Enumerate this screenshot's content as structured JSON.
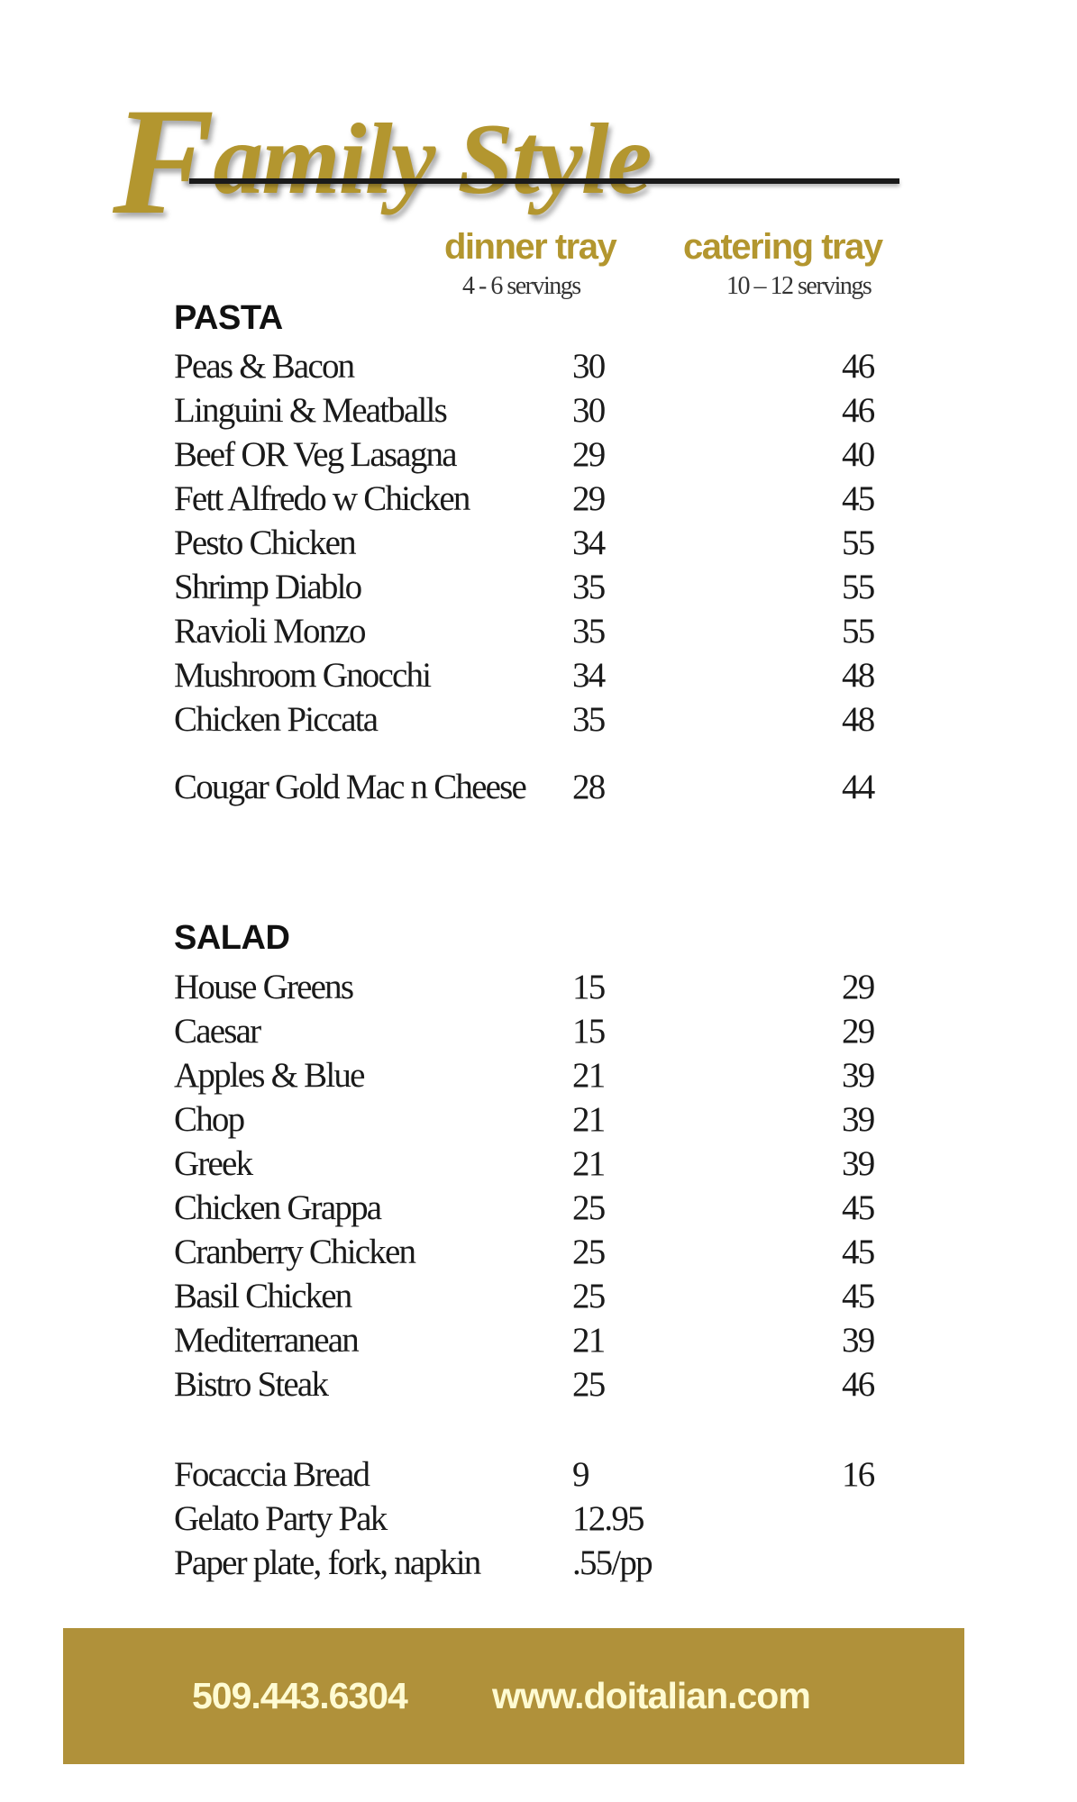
{
  "title": {
    "initial": "F",
    "rest": "amily Style"
  },
  "columns": [
    {
      "label": "dinner tray",
      "servings": "4 - 6 servings"
    },
    {
      "label": "catering tray",
      "servings": "10 – 12 servings"
    }
  ],
  "pasta": {
    "heading": "PASTA",
    "items": [
      {
        "name": "Peas & Bacon",
        "dinner": "30",
        "catering": "46"
      },
      {
        "name": "Linguini & Meatballs",
        "dinner": "30",
        "catering": "46"
      },
      {
        "name": "Beef OR Veg Lasagna",
        "dinner": "29",
        "catering": "40"
      },
      {
        "name": "Fett Alfredo w Chicken",
        "dinner": "29",
        "catering": "45"
      },
      {
        "name": "Pesto Chicken",
        "dinner": "34",
        "catering": "55"
      },
      {
        "name": "Shrimp Diablo",
        "dinner": "35",
        "catering": "55"
      },
      {
        "name": "Ravioli Monzo",
        "dinner": "35",
        "catering": "55"
      },
      {
        "name": "Mushroom Gnocchi",
        "dinner": "34",
        "catering": "48"
      },
      {
        "name": "Chicken Piccata",
        "dinner": "35",
        "catering": "48"
      },
      {
        "name": "Cougar Gold Mac n Cheese",
        "dinner": "28",
        "catering": "44"
      }
    ]
  },
  "salad": {
    "heading": "SALAD",
    "items": [
      {
        "name": "House Greens",
        "dinner": "15",
        "catering": "29"
      },
      {
        "name": "Caesar",
        "dinner": "15",
        "catering": "29"
      },
      {
        "name": "Apples & Blue",
        "dinner": "21",
        "catering": "39"
      },
      {
        "name": "Chop",
        "dinner": "21",
        "catering": "39"
      },
      {
        "name": "Greek",
        "dinner": "21",
        "catering": "39"
      },
      {
        "name": "Chicken Grappa",
        "dinner": "25",
        "catering": "45"
      },
      {
        "name": "Cranberry Chicken",
        "dinner": "25",
        "catering": "45"
      },
      {
        "name": "Basil Chicken",
        "dinner": "25",
        "catering": "45"
      },
      {
        "name": "Mediterranean",
        "dinner": "21",
        "catering": "39"
      },
      {
        "name": "Bistro Steak",
        "dinner": "25",
        "catering": "46"
      }
    ]
  },
  "extras": [
    {
      "name": "Focaccia Bread",
      "dinner": "9",
      "catering": "16"
    },
    {
      "name": "Gelato Party Pak",
      "dinner": "12.95",
      "catering": ""
    },
    {
      "name": "Paper plate, fork, napkin",
      "dinner": ".55/pp",
      "catering": ""
    }
  ],
  "footer": {
    "phone": "509.443.6304",
    "website": "www.doitalian.com"
  },
  "colors": {
    "gold": "#b3962f",
    "footer_bg": "#b0913a",
    "footer_text": "#fffbd2"
  }
}
